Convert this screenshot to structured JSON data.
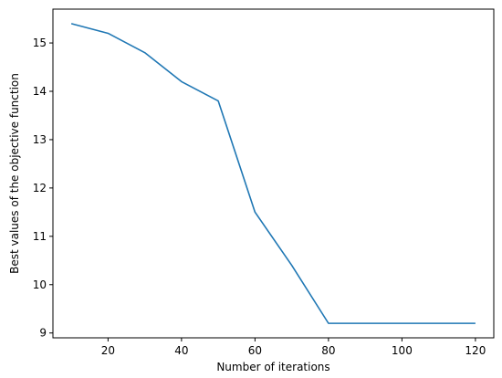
{
  "chart_data": {
    "type": "line",
    "title": "",
    "xlabel": "Number of iterations",
    "ylabel": "Best values of the objective function",
    "xlim": [
      5,
      125
    ],
    "ylim": [
      8.9,
      15.7
    ],
    "x_ticks": [
      20,
      40,
      60,
      80,
      100,
      120
    ],
    "y_ticks": [
      9,
      10,
      11,
      12,
      13,
      14,
      15
    ],
    "grid": false,
    "series": [
      {
        "color": "#1f77b4",
        "x": [
          10,
          20,
          30,
          40,
          50,
          60,
          70,
          80,
          90,
          100,
          110,
          120
        ],
        "y": [
          15.4,
          15.2,
          14.8,
          14.2,
          13.8,
          11.5,
          10.4,
          9.2,
          9.2,
          9.2,
          9.2,
          9.2
        ]
      }
    ]
  }
}
